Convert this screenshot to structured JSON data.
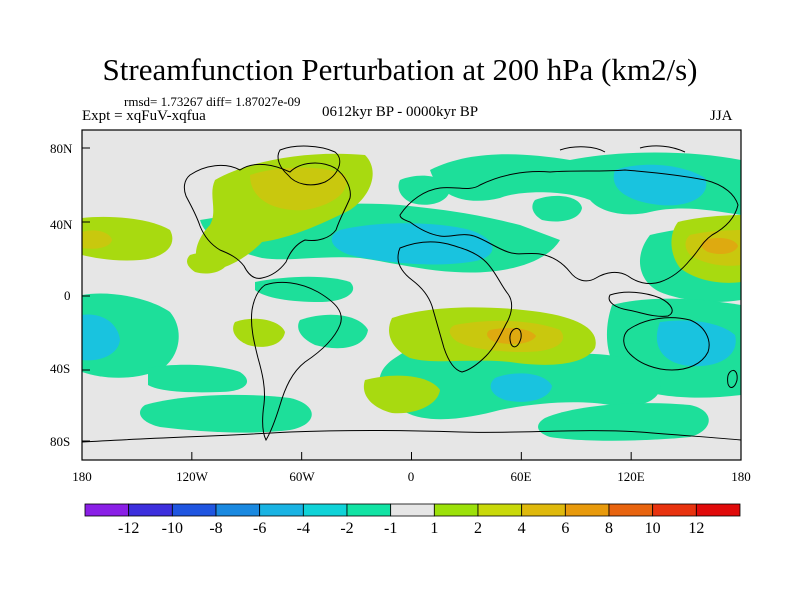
{
  "title": "Streamfunction Perturbation at 200 hPa (km2/s)",
  "stats": "rmsd= 1.73267 diff= 1.87027e-09",
  "experiment": "Expt = xqFuV-xqfua",
  "period": "0612kyr BP - 0000kyr BP",
  "season": "JJA",
  "lat_ticks": [
    "80N",
    "40N",
    "0",
    "40S",
    "80S"
  ],
  "lon_ticks": [
    "180",
    "120W",
    "60W",
    "0",
    "60E",
    "120E",
    "180"
  ],
  "colorbar": {
    "labels": [
      "-12",
      "-10",
      "-8",
      "-6",
      "-4",
      "-2",
      "-1",
      "1",
      "2",
      "4",
      "6",
      "8",
      "10",
      "12"
    ],
    "colors": [
      "#8a1fe6",
      "#3d2fdd",
      "#1f55e0",
      "#1a89e0",
      "#19b3e3",
      "#10d3d8",
      "#12e3a4",
      "#e6e6e6",
      "#9ce10a",
      "#c9d90a",
      "#dfb90c",
      "#e89a0c",
      "#e8640f",
      "#e8330f",
      "#e00a0a"
    ]
  },
  "palette": {
    "background": "#e6e6e6",
    "green": "#1ddf9a",
    "cyan": "#19c3df",
    "lime": "#a8da10",
    "olive": "#c9c80e",
    "orange": "#deaa10",
    "coast": "#000000"
  }
}
